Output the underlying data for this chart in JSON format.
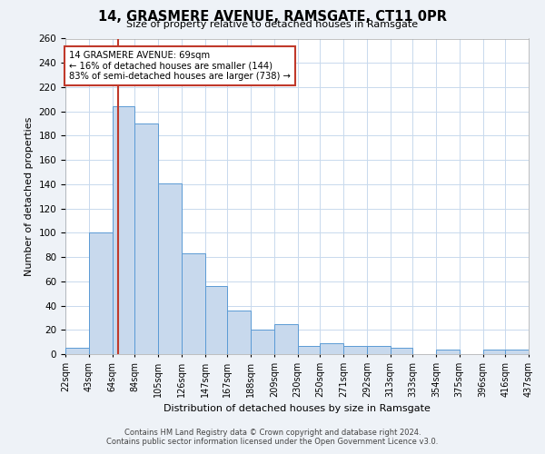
{
  "title": "14, GRASMERE AVENUE, RAMSGATE, CT11 0PR",
  "subtitle": "Size of property relative to detached houses in Ramsgate",
  "xlabel": "Distribution of detached houses by size in Ramsgate",
  "ylabel": "Number of detached properties",
  "bar_values": [
    5,
    100,
    204,
    190,
    141,
    83,
    56,
    36,
    20,
    25,
    7,
    9,
    7,
    7,
    5,
    0,
    4,
    0,
    4,
    4
  ],
  "bin_edges": [
    22,
    43,
    64,
    84,
    105,
    126,
    147,
    167,
    188,
    209,
    230,
    250,
    271,
    292,
    313,
    333,
    354,
    375,
    396,
    416,
    437
  ],
  "all_labels": [
    "22sqm",
    "43sqm",
    "64sqm",
    "84sqm",
    "105sqm",
    "126sqm",
    "147sqm",
    "167sqm",
    "188sqm",
    "209sqm",
    "230sqm",
    "250sqm",
    "271sqm",
    "292sqm",
    "313sqm",
    "333sqm",
    "354sqm",
    "375sqm",
    "396sqm",
    "416sqm",
    "437sqm"
  ],
  "bar_color": "#c8d9ed",
  "bar_edge_color": "#5b9bd5",
  "vline_x": 69,
  "vline_color": "#c0392b",
  "annotation_text": "14 GRASMERE AVENUE: 69sqm\n← 16% of detached houses are smaller (144)\n83% of semi-detached houses are larger (738) →",
  "annotation_box_color": "white",
  "annotation_box_edge_color": "#c0392b",
  "ylim": [
    0,
    260
  ],
  "yticks": [
    0,
    20,
    40,
    60,
    80,
    100,
    120,
    140,
    160,
    180,
    200,
    220,
    240,
    260
  ],
  "footer_line1": "Contains HM Land Registry data © Crown copyright and database right 2024.",
  "footer_line2": "Contains public sector information licensed under the Open Government Licence v3.0.",
  "bg_color": "#eef2f7",
  "plot_bg_color": "#ffffff",
  "grid_color": "#c8d9ed",
  "title_fontsize": 10.5,
  "subtitle_fontsize": 8,
  "ylabel_fontsize": 8,
  "xlabel_fontsize": 8,
  "tick_fontsize": 7,
  "footer_fontsize": 6
}
